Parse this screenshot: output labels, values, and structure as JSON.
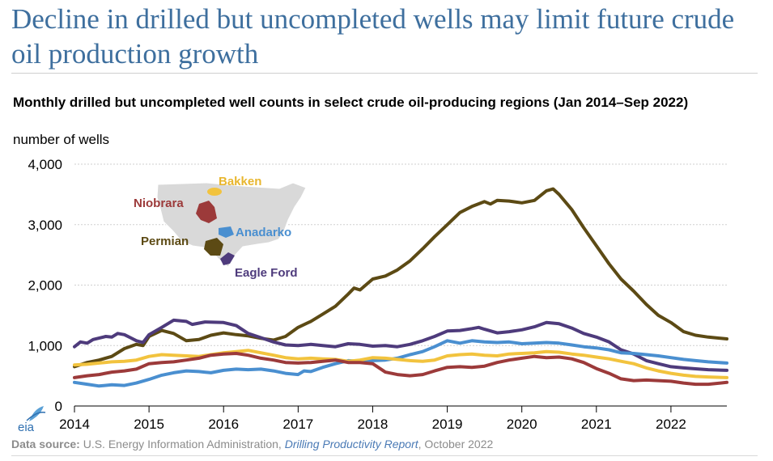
{
  "headline": "Decline in drilled but uncompleted wells may limit future crude oil production growth",
  "source": {
    "label": "Data source:",
    "org": "U.S. Energy Information Administration,",
    "report": "Drilling Productivity Report",
    "date": ", October 2022"
  },
  "logo_text": "eia",
  "map_labels": [
    "Bakken",
    "Niobrara",
    "Anadarko",
    "Permian",
    "Eagle Ford"
  ],
  "chart_data": {
    "type": "line",
    "title": "Monthly drilled but uncompleted well counts in select crude oil-producing regions (Jan 2014–Sep 2022)",
    "ylabel": "number of wells",
    "xlabel": "",
    "ylim": [
      0,
      4000
    ],
    "xlim": [
      2014,
      2022.75
    ],
    "yticks": [
      0,
      1000,
      2000,
      3000,
      4000
    ],
    "ytick_labels": [
      "0",
      "1,000",
      "2,000",
      "3,000",
      "4,000"
    ],
    "xticks": [
      2014,
      2015,
      2016,
      2017,
      2018,
      2019,
      2020,
      2021,
      2022
    ],
    "xtick_labels": [
      "2014",
      "2015",
      "2016",
      "2017",
      "2018",
      "2019",
      "2020",
      "2021",
      "2022"
    ],
    "grid": true,
    "series": [
      {
        "name": "Permian",
        "color": "#5c4a14",
        "points": [
          [
            2014.0,
            650
          ],
          [
            2014.17,
            720
          ],
          [
            2014.33,
            760
          ],
          [
            2014.5,
            820
          ],
          [
            2014.67,
            950
          ],
          [
            2014.83,
            1020
          ],
          [
            2014.92,
            1000
          ],
          [
            2015.0,
            1150
          ],
          [
            2015.17,
            1250
          ],
          [
            2015.33,
            1200
          ],
          [
            2015.5,
            1080
          ],
          [
            2015.67,
            1100
          ],
          [
            2015.83,
            1170
          ],
          [
            2016.0,
            1210
          ],
          [
            2016.17,
            1180
          ],
          [
            2016.33,
            1160
          ],
          [
            2016.5,
            1120
          ],
          [
            2016.67,
            1090
          ],
          [
            2016.83,
            1150
          ],
          [
            2017.0,
            1300
          ],
          [
            2017.17,
            1400
          ],
          [
            2017.33,
            1520
          ],
          [
            2017.5,
            1650
          ],
          [
            2017.67,
            1850
          ],
          [
            2017.75,
            1950
          ],
          [
            2017.83,
            1920
          ],
          [
            2018.0,
            2100
          ],
          [
            2018.17,
            2150
          ],
          [
            2018.33,
            2250
          ],
          [
            2018.5,
            2400
          ],
          [
            2018.67,
            2600
          ],
          [
            2018.83,
            2800
          ],
          [
            2019.0,
            3000
          ],
          [
            2019.17,
            3200
          ],
          [
            2019.33,
            3300
          ],
          [
            2019.5,
            3380
          ],
          [
            2019.58,
            3340
          ],
          [
            2019.67,
            3400
          ],
          [
            2019.83,
            3390
          ],
          [
            2020.0,
            3360
          ],
          [
            2020.17,
            3400
          ],
          [
            2020.33,
            3560
          ],
          [
            2020.42,
            3590
          ],
          [
            2020.5,
            3500
          ],
          [
            2020.67,
            3250
          ],
          [
            2020.83,
            2950
          ],
          [
            2021.0,
            2650
          ],
          [
            2021.17,
            2350
          ],
          [
            2021.33,
            2100
          ],
          [
            2021.5,
            1900
          ],
          [
            2021.67,
            1680
          ],
          [
            2021.83,
            1500
          ],
          [
            2022.0,
            1380
          ],
          [
            2022.17,
            1230
          ],
          [
            2022.33,
            1170
          ],
          [
            2022.5,
            1140
          ],
          [
            2022.75,
            1110
          ]
        ]
      },
      {
        "name": "Eagle Ford",
        "color": "#4e3b7c",
        "points": [
          [
            2014.0,
            980
          ],
          [
            2014.08,
            1060
          ],
          [
            2014.17,
            1040
          ],
          [
            2014.25,
            1100
          ],
          [
            2014.42,
            1150
          ],
          [
            2014.5,
            1140
          ],
          [
            2014.58,
            1200
          ],
          [
            2014.67,
            1180
          ],
          [
            2014.75,
            1130
          ],
          [
            2014.83,
            1080
          ],
          [
            2014.92,
            1050
          ],
          [
            2015.0,
            1180
          ],
          [
            2015.17,
            1300
          ],
          [
            2015.33,
            1420
          ],
          [
            2015.5,
            1400
          ],
          [
            2015.58,
            1350
          ],
          [
            2015.75,
            1390
          ],
          [
            2016.0,
            1380
          ],
          [
            2016.17,
            1330
          ],
          [
            2016.33,
            1200
          ],
          [
            2016.5,
            1130
          ],
          [
            2016.67,
            1060
          ],
          [
            2016.83,
            1010
          ],
          [
            2017.0,
            1000
          ],
          [
            2017.17,
            1020
          ],
          [
            2017.33,
            1000
          ],
          [
            2017.5,
            980
          ],
          [
            2017.67,
            1030
          ],
          [
            2017.83,
            1020
          ],
          [
            2018.0,
            990
          ],
          [
            2018.17,
            1000
          ],
          [
            2018.33,
            980
          ],
          [
            2018.5,
            1020
          ],
          [
            2018.67,
            1080
          ],
          [
            2018.83,
            1150
          ],
          [
            2019.0,
            1240
          ],
          [
            2019.17,
            1250
          ],
          [
            2019.33,
            1280
          ],
          [
            2019.42,
            1300
          ],
          [
            2019.5,
            1270
          ],
          [
            2019.67,
            1210
          ],
          [
            2019.83,
            1230
          ],
          [
            2020.0,
            1260
          ],
          [
            2020.17,
            1310
          ],
          [
            2020.33,
            1380
          ],
          [
            2020.5,
            1360
          ],
          [
            2020.67,
            1290
          ],
          [
            2020.83,
            1200
          ],
          [
            2021.0,
            1140
          ],
          [
            2021.17,
            1060
          ],
          [
            2021.33,
            930
          ],
          [
            2021.5,
            860
          ],
          [
            2021.67,
            750
          ],
          [
            2021.83,
            700
          ],
          [
            2022.0,
            650
          ],
          [
            2022.17,
            630
          ],
          [
            2022.33,
            615
          ],
          [
            2022.5,
            600
          ],
          [
            2022.75,
            590
          ]
        ]
      },
      {
        "name": "Anadarko",
        "color": "#4a8fd0",
        "points": [
          [
            2014.0,
            390
          ],
          [
            2014.17,
            360
          ],
          [
            2014.33,
            330
          ],
          [
            2014.5,
            350
          ],
          [
            2014.67,
            340
          ],
          [
            2014.83,
            380
          ],
          [
            2015.0,
            440
          ],
          [
            2015.17,
            510
          ],
          [
            2015.33,
            550
          ],
          [
            2015.5,
            580
          ],
          [
            2015.67,
            570
          ],
          [
            2015.83,
            550
          ],
          [
            2016.0,
            590
          ],
          [
            2016.17,
            610
          ],
          [
            2016.33,
            600
          ],
          [
            2016.5,
            610
          ],
          [
            2016.67,
            580
          ],
          [
            2016.83,
            540
          ],
          [
            2017.0,
            520
          ],
          [
            2017.08,
            580
          ],
          [
            2017.17,
            570
          ],
          [
            2017.33,
            640
          ],
          [
            2017.5,
            700
          ],
          [
            2017.67,
            750
          ],
          [
            2017.83,
            740
          ],
          [
            2018.0,
            750
          ],
          [
            2018.17,
            760
          ],
          [
            2018.33,
            790
          ],
          [
            2018.5,
            850
          ],
          [
            2018.67,
            900
          ],
          [
            2018.83,
            980
          ],
          [
            2019.0,
            1080
          ],
          [
            2019.17,
            1040
          ],
          [
            2019.33,
            1080
          ],
          [
            2019.5,
            1060
          ],
          [
            2019.67,
            1050
          ],
          [
            2019.83,
            1060
          ],
          [
            2020.0,
            1030
          ],
          [
            2020.17,
            1040
          ],
          [
            2020.33,
            1050
          ],
          [
            2020.5,
            1040
          ],
          [
            2020.67,
            1010
          ],
          [
            2020.83,
            980
          ],
          [
            2021.0,
            960
          ],
          [
            2021.17,
            930
          ],
          [
            2021.33,
            880
          ],
          [
            2021.5,
            870
          ],
          [
            2021.67,
            850
          ],
          [
            2021.83,
            830
          ],
          [
            2022.0,
            800
          ],
          [
            2022.17,
            770
          ],
          [
            2022.33,
            750
          ],
          [
            2022.5,
            730
          ],
          [
            2022.75,
            710
          ]
        ]
      },
      {
        "name": "Bakken",
        "color": "#f2c33e",
        "points": [
          [
            2014.0,
            680
          ],
          [
            2014.17,
            690
          ],
          [
            2014.33,
            710
          ],
          [
            2014.5,
            730
          ],
          [
            2014.67,
            740
          ],
          [
            2014.83,
            760
          ],
          [
            2015.0,
            820
          ],
          [
            2015.17,
            850
          ],
          [
            2015.33,
            840
          ],
          [
            2015.5,
            830
          ],
          [
            2015.67,
            820
          ],
          [
            2015.83,
            850
          ],
          [
            2016.0,
            880
          ],
          [
            2016.17,
            900
          ],
          [
            2016.33,
            920
          ],
          [
            2016.5,
            880
          ],
          [
            2016.67,
            840
          ],
          [
            2016.83,
            800
          ],
          [
            2017.0,
            780
          ],
          [
            2017.17,
            790
          ],
          [
            2017.33,
            780
          ],
          [
            2017.5,
            770
          ],
          [
            2017.67,
            740
          ],
          [
            2017.83,
            760
          ],
          [
            2018.0,
            800
          ],
          [
            2018.17,
            790
          ],
          [
            2018.33,
            770
          ],
          [
            2018.5,
            750
          ],
          [
            2018.67,
            740
          ],
          [
            2018.83,
            760
          ],
          [
            2019.0,
            830
          ],
          [
            2019.17,
            850
          ],
          [
            2019.33,
            860
          ],
          [
            2019.5,
            840
          ],
          [
            2019.67,
            830
          ],
          [
            2019.83,
            860
          ],
          [
            2020.0,
            870
          ],
          [
            2020.17,
            880
          ],
          [
            2020.33,
            900
          ],
          [
            2020.5,
            890
          ],
          [
            2020.67,
            860
          ],
          [
            2020.83,
            840
          ],
          [
            2021.0,
            810
          ],
          [
            2021.17,
            780
          ],
          [
            2021.33,
            740
          ],
          [
            2021.5,
            700
          ],
          [
            2021.67,
            630
          ],
          [
            2021.83,
            580
          ],
          [
            2022.0,
            540
          ],
          [
            2022.17,
            510
          ],
          [
            2022.33,
            490
          ],
          [
            2022.5,
            480
          ],
          [
            2022.75,
            470
          ]
        ]
      },
      {
        "name": "Niobrara",
        "color": "#9c3a3a",
        "points": [
          [
            2014.0,
            470
          ],
          [
            2014.17,
            500
          ],
          [
            2014.33,
            520
          ],
          [
            2014.5,
            560
          ],
          [
            2014.67,
            580
          ],
          [
            2014.83,
            610
          ],
          [
            2015.0,
            700
          ],
          [
            2015.17,
            720
          ],
          [
            2015.33,
            730
          ],
          [
            2015.5,
            760
          ],
          [
            2015.67,
            790
          ],
          [
            2015.83,
            840
          ],
          [
            2016.0,
            860
          ],
          [
            2016.17,
            870
          ],
          [
            2016.33,
            840
          ],
          [
            2016.5,
            790
          ],
          [
            2016.67,
            760
          ],
          [
            2016.83,
            720
          ],
          [
            2017.0,
            710
          ],
          [
            2017.17,
            720
          ],
          [
            2017.33,
            740
          ],
          [
            2017.5,
            760
          ],
          [
            2017.67,
            720
          ],
          [
            2017.83,
            720
          ],
          [
            2018.0,
            700
          ],
          [
            2018.17,
            560
          ],
          [
            2018.33,
            520
          ],
          [
            2018.5,
            500
          ],
          [
            2018.67,
            520
          ],
          [
            2018.83,
            580
          ],
          [
            2019.0,
            640
          ],
          [
            2019.17,
            650
          ],
          [
            2019.33,
            640
          ],
          [
            2019.5,
            660
          ],
          [
            2019.67,
            720
          ],
          [
            2019.83,
            760
          ],
          [
            2020.0,
            790
          ],
          [
            2020.17,
            820
          ],
          [
            2020.33,
            800
          ],
          [
            2020.5,
            810
          ],
          [
            2020.67,
            780
          ],
          [
            2020.83,
            720
          ],
          [
            2021.0,
            620
          ],
          [
            2021.17,
            540
          ],
          [
            2021.33,
            450
          ],
          [
            2021.5,
            420
          ],
          [
            2021.67,
            430
          ],
          [
            2021.83,
            420
          ],
          [
            2022.0,
            410
          ],
          [
            2022.17,
            380
          ],
          [
            2022.33,
            360
          ],
          [
            2022.5,
            360
          ],
          [
            2022.75,
            390
          ]
        ]
      }
    ]
  }
}
